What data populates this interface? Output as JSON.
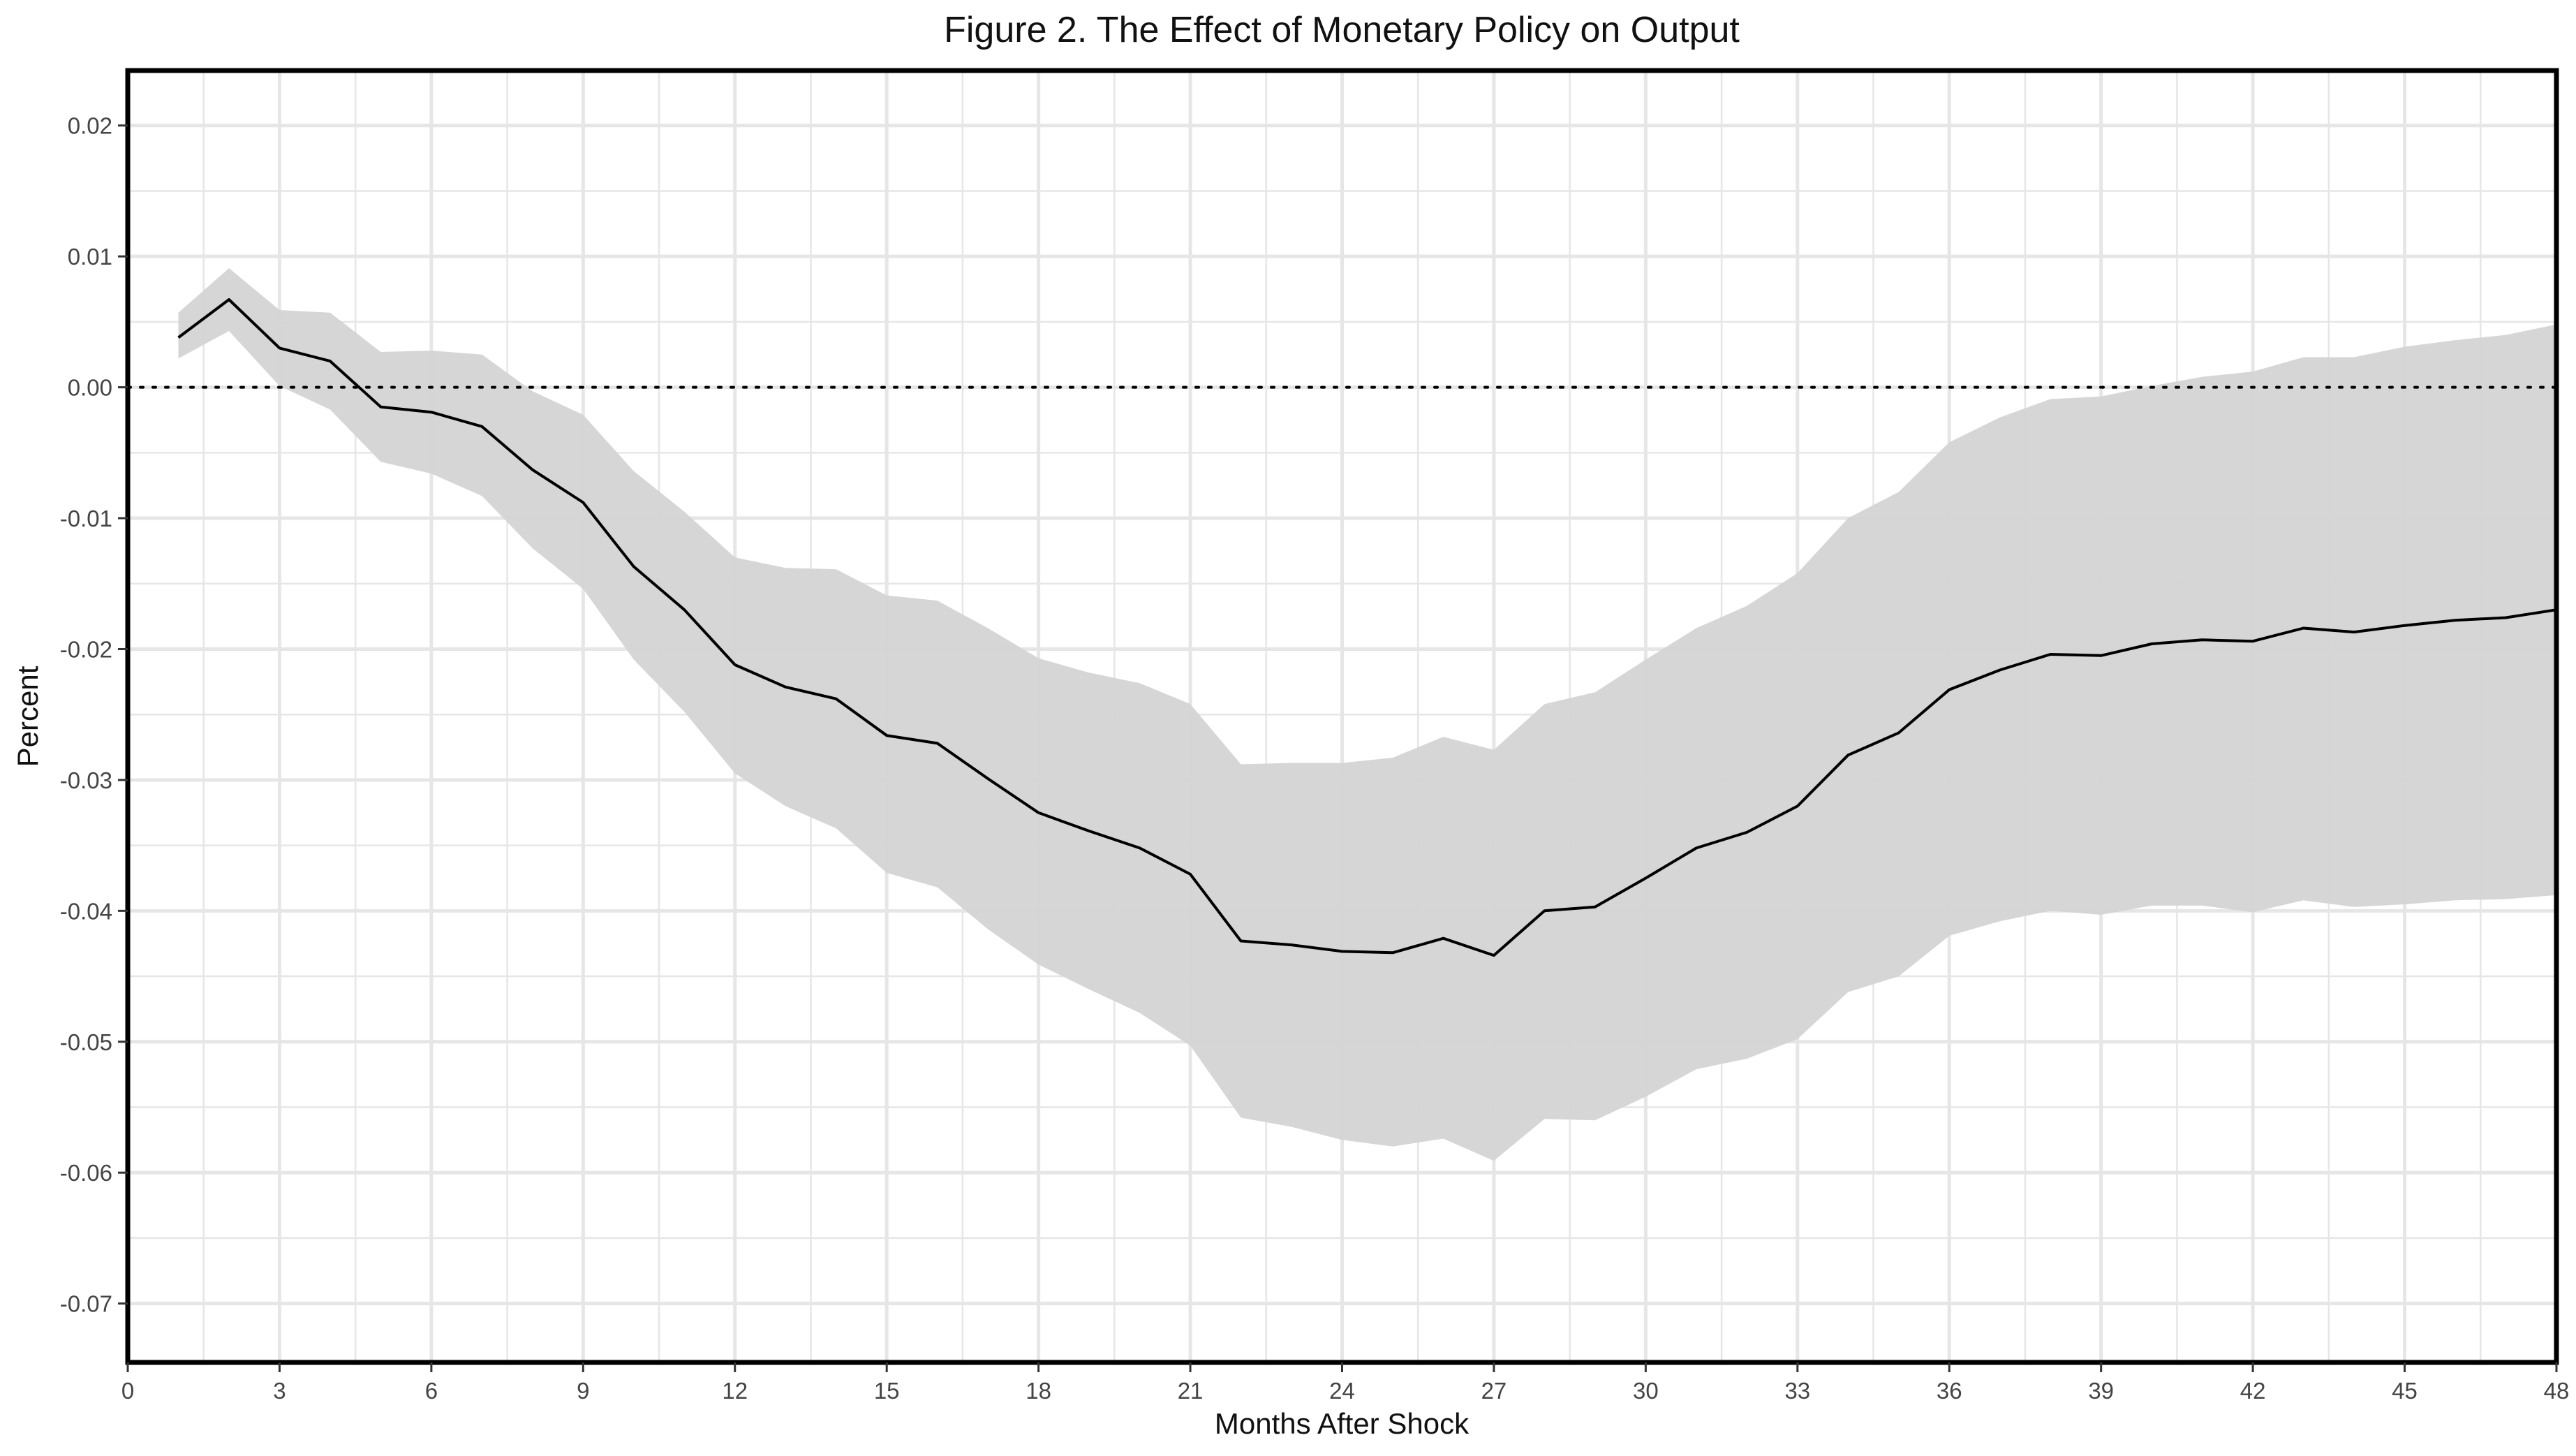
{
  "chart_data": {
    "type": "line",
    "title": "Figure 2. The Effect of Monetary Policy on Output",
    "xlabel": "Months After Shock",
    "ylabel": "Percent",
    "xlim": [
      0,
      48
    ],
    "ylim": [
      -0.0745,
      0.0242
    ],
    "x_ticks": [
      0,
      3,
      6,
      9,
      12,
      15,
      18,
      21,
      24,
      27,
      30,
      33,
      36,
      39,
      42,
      45,
      48
    ],
    "x_tick_labels": [
      "0",
      "3",
      "6",
      "9",
      "12",
      "15",
      "18",
      "21",
      "24",
      "27",
      "30",
      "33",
      "36",
      "39",
      "42",
      "45",
      "48"
    ],
    "y_ticks": [
      0.02,
      0.01,
      0.0,
      -0.01,
      -0.02,
      -0.03,
      -0.04,
      -0.05,
      -0.06,
      -0.07
    ],
    "y_tick_labels": [
      "0.02",
      "0.01",
      "0.00",
      "-0.01",
      "-0.02",
      "-0.03",
      "-0.04",
      "-0.05",
      "-0.06",
      "-0.07"
    ],
    "grid": true,
    "reference_line": {
      "y": 0.0,
      "style": "dotted"
    },
    "colors": {
      "line": "#000000",
      "band": "#d4d4d4",
      "grid": "#e6e6e6",
      "frame": "#000000"
    },
    "x": [
      1,
      2,
      3,
      4,
      5,
      6,
      7,
      8,
      9,
      10,
      11,
      12,
      13,
      14,
      15,
      16,
      17,
      18,
      19,
      20,
      21,
      22,
      23,
      24,
      25,
      26,
      27,
      28,
      29,
      30,
      31,
      32,
      33,
      34,
      35,
      36,
      37,
      38,
      39,
      40,
      41,
      42,
      43,
      44,
      45,
      46,
      47,
      48
    ],
    "series": [
      {
        "type": "line",
        "values": [
          0.0038,
          0.0067,
          0.003,
          0.002,
          -0.0015,
          -0.0019,
          -0.003,
          -0.0063,
          -0.0088,
          -0.0137,
          -0.017,
          -0.0212,
          -0.0229,
          -0.0238,
          -0.0266,
          -0.0272,
          -0.0299,
          -0.0325,
          -0.0339,
          -0.0352,
          -0.0372,
          -0.0423,
          -0.0426,
          -0.0431,
          -0.0432,
          -0.0421,
          -0.0434,
          -0.04,
          -0.0397,
          -0.0375,
          -0.0352,
          -0.034,
          -0.032,
          -0.0281,
          -0.0264,
          -0.0231,
          -0.0216,
          -0.0204,
          -0.0205,
          -0.0196,
          -0.0193,
          -0.0194,
          -0.0184,
          -0.0187,
          -0.0182,
          -0.0178,
          -0.0176,
          -0.017
        ]
      },
      {
        "type": "band",
        "upper": [
          0.0057,
          0.0091,
          0.0059,
          0.0057,
          0.0027,
          0.0028,
          0.0025,
          -0.0003,
          -0.0021,
          -0.0064,
          -0.0095,
          -0.013,
          -0.0138,
          -0.0139,
          -0.0159,
          -0.0163,
          -0.0184,
          -0.0207,
          -0.0218,
          -0.0226,
          -0.0242,
          -0.0288,
          -0.0287,
          -0.0287,
          -0.0283,
          -0.0267,
          -0.0277,
          -0.0242,
          -0.0233,
          -0.0208,
          -0.0184,
          -0.0167,
          -0.0142,
          -0.01,
          -0.008,
          -0.0042,
          -0.0023,
          -0.0009,
          -0.0007,
          0.0001,
          0.0008,
          0.0012,
          0.0023,
          0.0023,
          0.0031,
          0.0036,
          0.004,
          0.0048
        ],
        "lower": [
          0.0022,
          0.0043,
          0.0001,
          -0.0017,
          -0.0057,
          -0.0066,
          -0.0083,
          -0.0123,
          -0.0154,
          -0.0208,
          -0.0248,
          -0.0295,
          -0.032,
          -0.0337,
          -0.0371,
          -0.0382,
          -0.0414,
          -0.0441,
          -0.046,
          -0.0478,
          -0.0503,
          -0.0558,
          -0.0565,
          -0.0575,
          -0.058,
          -0.0574,
          -0.0591,
          -0.0559,
          -0.056,
          -0.0542,
          -0.0521,
          -0.0513,
          -0.0498,
          -0.0462,
          -0.045,
          -0.0419,
          -0.0408,
          -0.04,
          -0.0403,
          -0.0396,
          -0.0396,
          -0.0401,
          -0.0392,
          -0.0397,
          -0.0395,
          -0.0392,
          -0.0391,
          -0.0388
        ]
      }
    ]
  }
}
